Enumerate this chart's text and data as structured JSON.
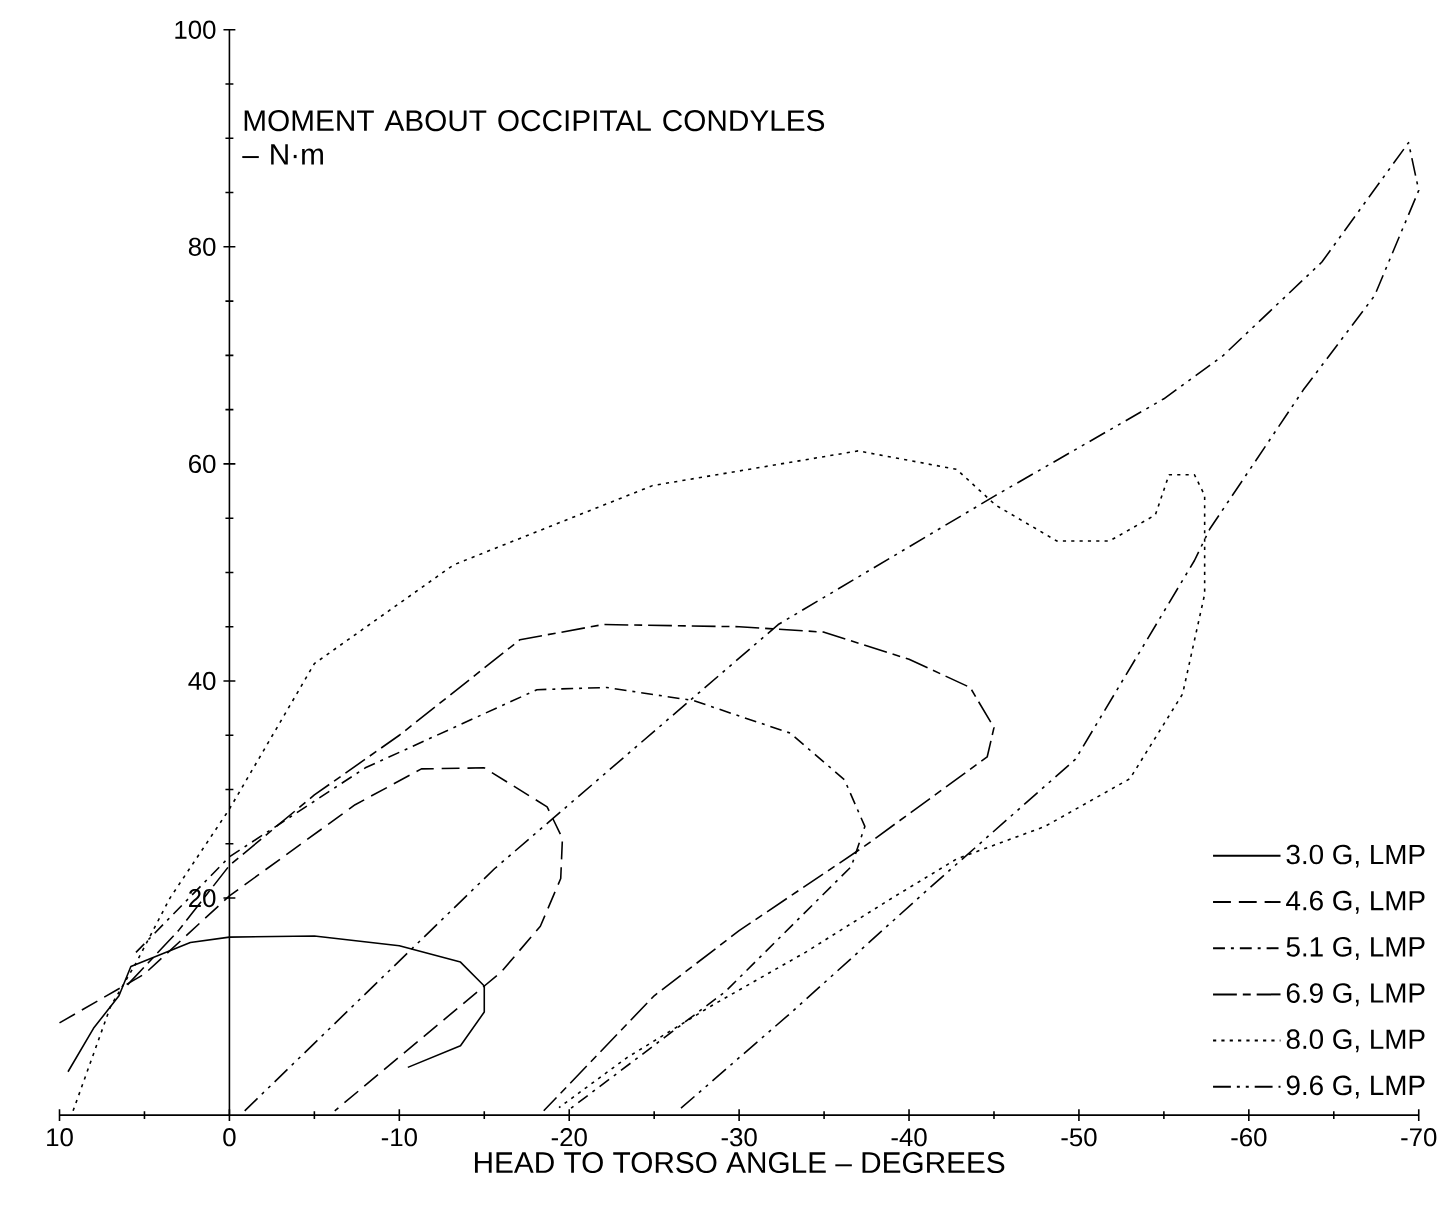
{
  "chart_data": {
    "type": "line",
    "xlabel": "HEAD TO TORSO ANGLE – DEGREES",
    "ylabel": "MOMENT ABOUT OCCIPITAL CONDYLES – N·m",
    "xlim": [
      10,
      -70
    ],
    "ylim": [
      0,
      100
    ],
    "xticks": [
      10,
      0,
      -10,
      -20,
      -30,
      -40,
      -50,
      -60,
      -70
    ],
    "yticks": [
      20,
      40,
      60,
      80,
      100
    ],
    "grid": false,
    "legend": "right",
    "marker": "none",
    "series": [
      {
        "name": "3.0 G, LMP",
        "color": "#000000",
        "line_style": "solid",
        "x": [
          9.5,
          8,
          6.5,
          5.8,
          2.3,
          0,
          -5,
          -10,
          -13.6,
          -15,
          -15,
          -13.6,
          -10.5
        ],
        "values": [
          4,
          8,
          11,
          13.7,
          15.9,
          16.4,
          16.5,
          15.6,
          14.1,
          11.9,
          9.5,
          6.4,
          4.4
        ]
      },
      {
        "name": "4.6 G, LMP",
        "color": "#000000",
        "line_style": "dashed",
        "x": [
          10,
          5,
          0,
          -7.4,
          -11.3,
          -15,
          -18.7,
          -19.6,
          -19.5,
          -18.3,
          -16,
          -6.2
        ],
        "values": [
          8.5,
          13,
          20.2,
          28.6,
          31.9,
          32,
          28.4,
          25.5,
          21.8,
          17.4,
          13.2,
          0.4
        ]
      },
      {
        "name": "5.1 G, LMP",
        "color": "#000000",
        "line_style": "dashdot",
        "x": [
          5.5,
          0,
          -8,
          -18.1,
          -22.2,
          -27.3,
          -33,
          -36.2,
          -37.4,
          -36.6,
          -29.2,
          -19.9
        ],
        "values": [
          15,
          23.8,
          32,
          39.2,
          39.4,
          38.2,
          35.2,
          30.9,
          26.6,
          22.9,
          11.4,
          0.4
        ]
      },
      {
        "name": "6.9 G, LMP",
        "color": "#000000",
        "line_style": "longdashdot",
        "x": [
          6,
          3,
          0,
          -5,
          -10,
          -17.1,
          -22,
          -30,
          -35,
          -40,
          -43.6,
          -45,
          -44.6,
          -37.4,
          -30,
          -25,
          -18.5
        ],
        "values": [
          12,
          17,
          23,
          29.5,
          35,
          43.8,
          45.2,
          45,
          44.5,
          42,
          39.4,
          35.7,
          33,
          24.8,
          17,
          11,
          0.4
        ]
      },
      {
        "name": "8.0 G, LMP",
        "color": "#000000",
        "line_style": "dotted",
        "x": [
          9.2,
          7,
          5.5,
          3.5,
          0,
          -5,
          -13.2,
          -24.9,
          -37,
          -42.8,
          -45.1,
          -48.7,
          -51.8,
          -54.5,
          -55.3,
          -56.8,
          -57.4,
          -57.4,
          -56.1,
          -53,
          -48,
          -42.8,
          -39,
          -33.9,
          -28.4,
          -23.4,
          -19.4
        ],
        "values": [
          0.4,
          10,
          14,
          20,
          28.2,
          41.6,
          50.7,
          58,
          61.2,
          59.5,
          56.2,
          52.9,
          52.9,
          55.3,
          59,
          59,
          57.1,
          48,
          38.8,
          31,
          26.6,
          23.6,
          20,
          15,
          10.1,
          5.3,
          0.7
        ]
      },
      {
        "name": "9.6 G, LMP",
        "color": "#000000",
        "line_style": "dashdotdot",
        "x": [
          -0.9,
          -15.6,
          -32.3,
          -45.1,
          -55,
          -58.5,
          -64.3,
          -69.4,
          -70,
          -67.4,
          -63.2,
          -57.7,
          -56.8,
          -49.8,
          -40.9,
          -33.1,
          -26.4
        ],
        "values": [
          0.4,
          22.7,
          45.2,
          57.1,
          66,
          70,
          78.6,
          89.6,
          85.2,
          75.5,
          66.8,
          54,
          51.1,
          32.8,
          20.5,
          9.5,
          0.4
        ]
      }
    ]
  }
}
